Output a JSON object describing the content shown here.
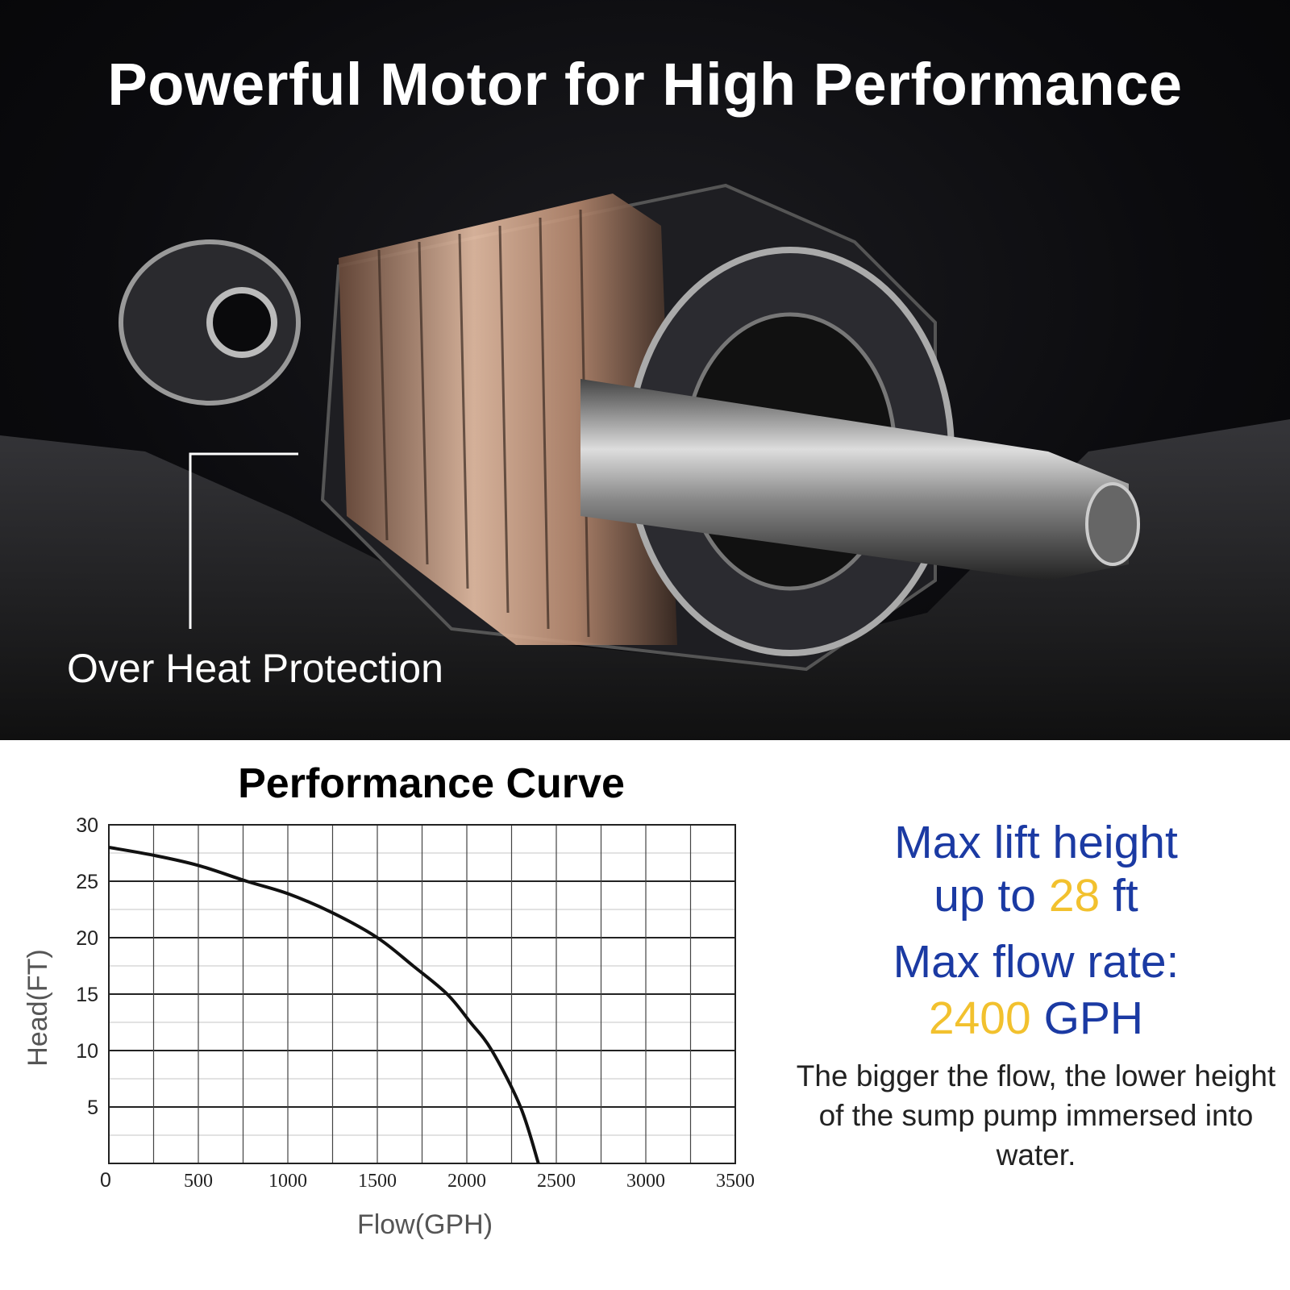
{
  "hero": {
    "title": "Powerful Motor for High Performance",
    "callout": "Over Heat Protection"
  },
  "specs": {
    "lift_prefix": "Max lift height",
    "lift_up_to": "up to",
    "lift_value": "28",
    "lift_unit": "ft",
    "flow_label": "Max flow rate:",
    "flow_value": "2400",
    "flow_unit": "GPH",
    "description": "The bigger the flow, the lower height of the sump pump immersed into water."
  },
  "colors": {
    "blue": "#1b3aa3",
    "yellow": "#f2c12e",
    "curve": "#111111"
  },
  "chart_data": {
    "type": "line",
    "title": "Performance Curve",
    "xlabel": "Flow(GPH)",
    "ylabel": "Head(FT)",
    "xlim": [
      0,
      3500
    ],
    "ylim": [
      0,
      30
    ],
    "xticks": [
      "0",
      "500",
      "1000",
      "1500",
      "2000",
      "2500",
      "3000",
      "3500"
    ],
    "yticks": [
      "5",
      "10",
      "15",
      "20",
      "25",
      "30"
    ],
    "grid": true,
    "series": [
      {
        "x": [
          0,
          250,
          500,
          770,
          1000,
          1250,
          1500,
          1700,
          1890,
          2020,
          2140,
          2300,
          2400
        ],
        "y": [
          28,
          27.3,
          26.4,
          25,
          23.9,
          22.2,
          20,
          17.5,
          15,
          12.5,
          10,
          5,
          0
        ]
      }
    ]
  }
}
